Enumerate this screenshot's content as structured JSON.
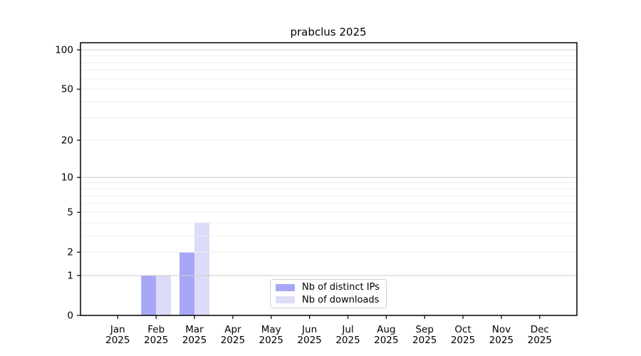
{
  "chart_data": {
    "type": "bar",
    "title": "prabclus 2025",
    "scale": "log1p",
    "categories": [
      {
        "month": "Jan",
        "year": "2025"
      },
      {
        "month": "Feb",
        "year": "2025"
      },
      {
        "month": "Mar",
        "year": "2025"
      },
      {
        "month": "Apr",
        "year": "2025"
      },
      {
        "month": "May",
        "year": "2025"
      },
      {
        "month": "Jun",
        "year": "2025"
      },
      {
        "month": "Jul",
        "year": "2025"
      },
      {
        "month": "Aug",
        "year": "2025"
      },
      {
        "month": "Sep",
        "year": "2025"
      },
      {
        "month": "Oct",
        "year": "2025"
      },
      {
        "month": "Nov",
        "year": "2025"
      },
      {
        "month": "Dec",
        "year": "2025"
      }
    ],
    "series": [
      {
        "name": "Nb of distinct IPs",
        "color": "#a7a7f7",
        "values": [
          0,
          1,
          2,
          0,
          0,
          0,
          0,
          0,
          0,
          0,
          0,
          0
        ]
      },
      {
        "name": "Nb of downloads",
        "color": "#dcdcf9",
        "values": [
          0,
          1,
          4,
          0,
          0,
          0,
          0,
          0,
          0,
          0,
          0,
          0
        ]
      }
    ],
    "y_ticks": [
      0,
      1,
      2,
      5,
      10,
      20,
      50,
      100
    ],
    "ylim": [
      0,
      114
    ],
    "grid": {
      "major": [
        1,
        10,
        100
      ],
      "minor": [
        2,
        3,
        4,
        5,
        6,
        7,
        8,
        9,
        20,
        30,
        40,
        50,
        60,
        70,
        80,
        90
      ]
    },
    "legend_position": "bottom-center",
    "colors": {
      "grid_major": "#cccccc",
      "grid_minor": "#eeeeee",
      "spine": "#000000",
      "text": "#000000"
    }
  }
}
